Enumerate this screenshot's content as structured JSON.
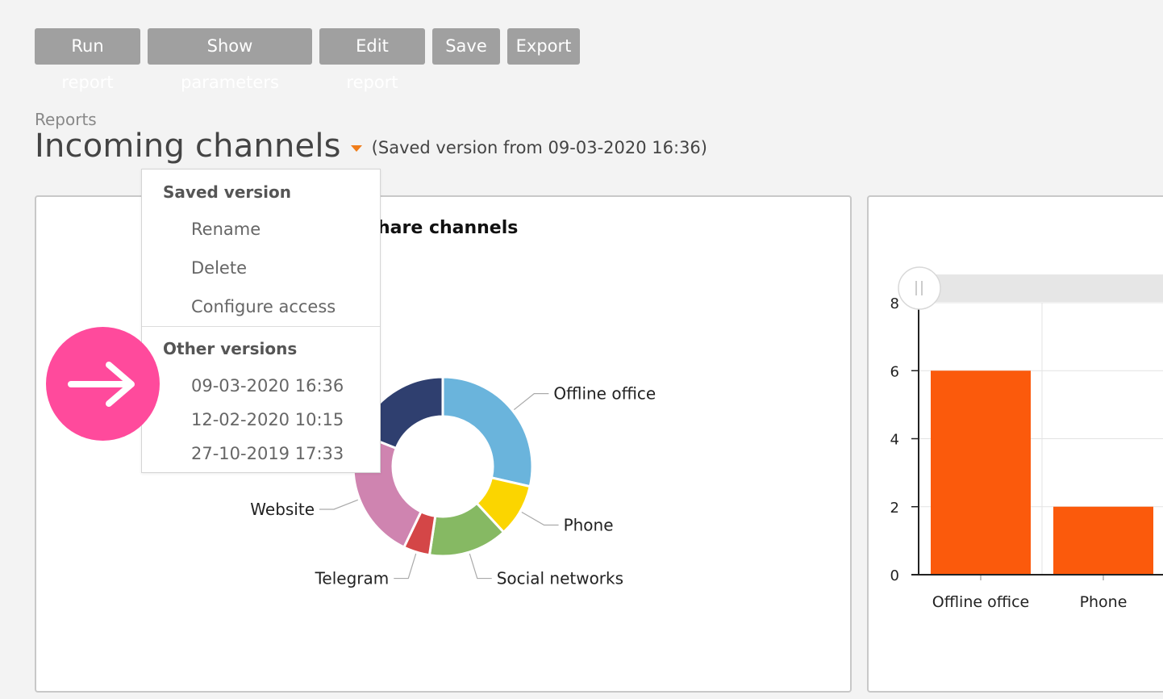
{
  "toolbar": {
    "run_report": "Run report",
    "show_parameters": "Show parameters",
    "edit_report": "Edit report",
    "save": "Save",
    "export": "Export"
  },
  "breadcrumb": "Reports",
  "page_title": "Incoming channels",
  "saved_note": "(Saved version from 09-03-2020 16:36)",
  "menu": {
    "saved_header": "Saved version",
    "saved_items": [
      "Rename",
      "Delete",
      "Configure access"
    ],
    "other_header": "Other versions",
    "other_items": [
      "09-03-2020 16:36",
      "12-02-2020 10:15",
      "27-10-2019 17:33"
    ]
  },
  "colors": {
    "accent": "#f07d1a",
    "fab": "#ff4a9c",
    "bar": "#fb5a0c",
    "button": "#a0a0a0"
  },
  "icons": {
    "fab": "arrow-right-icon",
    "caret": "caret-down-icon",
    "slider": "drag-handle-icon"
  },
  "chart_data": [
    {
      "type": "pie",
      "title": "hare channels",
      "donut": true,
      "slices": [
        {
          "label": "Offline office",
          "value": 6,
          "color": "#6ab4dc"
        },
        {
          "label": "Phone",
          "value": 2,
          "color": "#fbd500"
        },
        {
          "label": "Social networks",
          "value": 3,
          "color": "#86b963"
        },
        {
          "label": "Telegram",
          "value": 1,
          "color": "#d44647"
        },
        {
          "label": "Website",
          "value": 5,
          "color": "#cf84b0"
        },
        {
          "label": "",
          "value": 4,
          "color": "#2f3f6f"
        }
      ]
    },
    {
      "type": "bar",
      "categories": [
        "Offline office",
        "Phone"
      ],
      "values": [
        6,
        2
      ],
      "ylim": [
        0,
        8
      ],
      "yticks": [
        "0",
        "2",
        "4",
        "6",
        "8"
      ],
      "grid": true
    }
  ]
}
